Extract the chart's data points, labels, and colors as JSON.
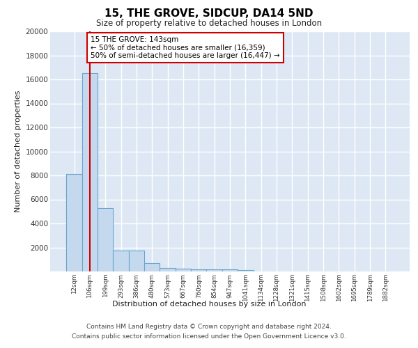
{
  "title1": "15, THE GROVE, SIDCUP, DA14 5ND",
  "title2": "Size of property relative to detached houses in London",
  "xlabel": "Distribution of detached houses by size in London",
  "ylabel": "Number of detached properties",
  "categories": [
    "12sqm",
    "106sqm",
    "199sqm",
    "293sqm",
    "386sqm",
    "480sqm",
    "573sqm",
    "667sqm",
    "760sqm",
    "854sqm",
    "947sqm",
    "1041sqm",
    "1134sqm",
    "1228sqm",
    "1321sqm",
    "1415sqm",
    "1508sqm",
    "1602sqm",
    "1695sqm",
    "1789sqm",
    "1882sqm"
  ],
  "values": [
    8100,
    16500,
    5300,
    1750,
    1750,
    700,
    300,
    220,
    200,
    170,
    150,
    120,
    0,
    0,
    0,
    0,
    0,
    0,
    0,
    0,
    0
  ],
  "bar_color": "#c5d9ee",
  "bar_edge_color": "#6aa3cc",
  "red_line_x": 1,
  "annotation_text": "15 THE GROVE: 143sqm\n← 50% of detached houses are smaller (16,359)\n50% of semi-detached houses are larger (16,447) →",
  "annotation_box_color": "#ffffff",
  "annotation_box_edge": "#cc0000",
  "footer1": "Contains HM Land Registry data © Crown copyright and database right 2024.",
  "footer2": "Contains public sector information licensed under the Open Government Licence v3.0.",
  "ylim": [
    0,
    20000
  ],
  "yticks": [
    0,
    2000,
    4000,
    6000,
    8000,
    10000,
    12000,
    14000,
    16000,
    18000,
    20000
  ],
  "plot_bg_color": "#dde8f4",
  "grid_color": "#ffffff"
}
